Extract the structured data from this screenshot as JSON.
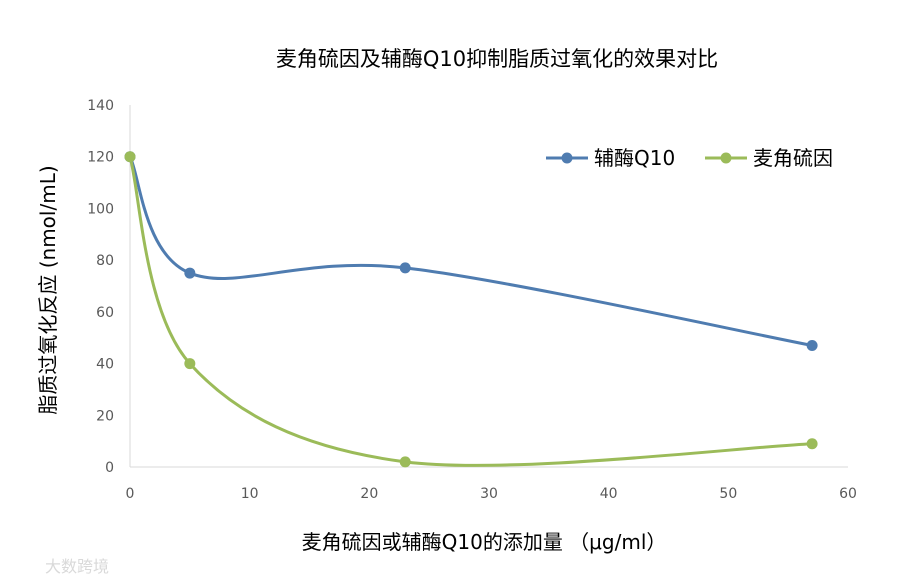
{
  "chart_data": {
    "type": "line",
    "title": "麦角硫因及辅酶Q10抑制脂质过氧化的效果对比",
    "xlabel": "麦角硫因或辅酶Q10的添加量 （μg/ml）",
    "ylabel": "脂质过氧化反应 (nmol/mL)",
    "xlim": [
      0,
      60
    ],
    "ylim": [
      0,
      140
    ],
    "xticks": [
      0,
      10,
      20,
      30,
      40,
      50,
      60
    ],
    "yticks": [
      0,
      20,
      40,
      60,
      80,
      100,
      120,
      140
    ],
    "grid": false,
    "smooth": true,
    "legend_position": "top-right",
    "series": [
      {
        "name": "辅酶Q10",
        "color": "#4f7cb0",
        "x": [
          0,
          5,
          23,
          57
        ],
        "y": [
          120,
          75,
          77,
          47
        ]
      },
      {
        "name": "麦角硫因",
        "color": "#9bbb59",
        "x": [
          0,
          5,
          23,
          57
        ],
        "y": [
          120,
          40,
          2,
          9
        ]
      }
    ]
  },
  "watermark": {
    "text": "大数跨境"
  }
}
